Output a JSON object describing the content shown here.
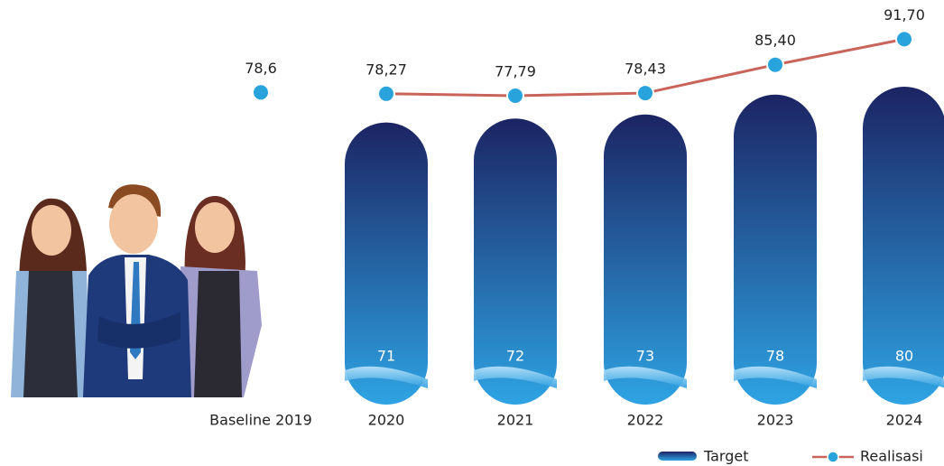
{
  "chart_data": {
    "type": "bar-line",
    "baseline": {
      "category": "Baseline 2019",
      "value": 78.6,
      "value_label": "78,6"
    },
    "categories": [
      "2020",
      "2021",
      "2022",
      "2023",
      "2024"
    ],
    "series": [
      {
        "name": "Target",
        "type": "bar",
        "colors": [
          "#1c2463",
          "#2ea3e3"
        ],
        "values": [
          71,
          72,
          73,
          78,
          80
        ]
      },
      {
        "name": "Realisasi",
        "type": "line",
        "color": "#c8645a",
        "marker_color": "#29a3dc",
        "values": [
          78.27,
          77.79,
          78.43,
          85.4,
          91.7
        ],
        "value_labels": [
          "78,27",
          "77,79",
          "78,43",
          "85,40",
          "91,70"
        ]
      }
    ]
  }
}
